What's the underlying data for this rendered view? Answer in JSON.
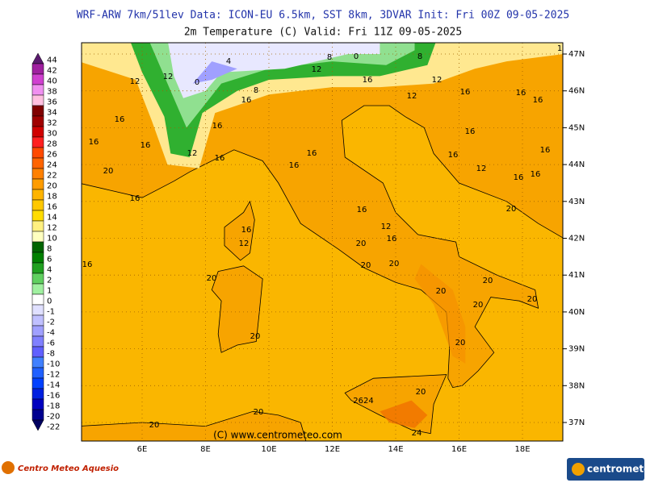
{
  "header": {
    "line1": "WRF-ARW 7km/51lev   Data: ICON-EU 6.5km, SST 8km, 3DVAR   Init: Fri 00Z 09-05-2025",
    "line2": "2m Temperature (C)  Valid: Fri 11Z 09-05-2025"
  },
  "legend": {
    "labels": [
      "44",
      "42",
      "40",
      "38",
      "36",
      "34",
      "32",
      "30",
      "28",
      "26",
      "24",
      "22",
      "20",
      "18",
      "16",
      "14",
      "12",
      "10",
      "8",
      "6",
      "4",
      "2",
      "1",
      "0",
      "-1",
      "-2",
      "-4",
      "-6",
      "-8",
      "-10",
      "-12",
      "-14",
      "-16",
      "-18",
      "-20",
      "-22"
    ],
    "colors": [
      "#5a1a6e",
      "#a020a0",
      "#d040d0",
      "#f090f0",
      "#ffc0e0",
      "#800000",
      "#a00000",
      "#d00000",
      "#ff2020",
      "#ff4a00",
      "#ff6400",
      "#ff8000",
      "#ff9c00",
      "#ffb400",
      "#ffc800",
      "#ffdc00",
      "#fff080",
      "#ffffc0",
      "#006400",
      "#008000",
      "#20a020",
      "#60d060",
      "#a0f0a0",
      "#ffffff",
      "#e0e0ff",
      "#c0c0ff",
      "#a0a0ff",
      "#8080ff",
      "#6060ff",
      "#4080ff",
      "#2060ff",
      "#0040ff",
      "#0020e0",
      "#0000c0",
      "#000090",
      "#000060"
    ]
  },
  "map": {
    "lat_labels": [
      "47N",
      "46N",
      "45N",
      "44N",
      "43N",
      "42N",
      "41N",
      "40N",
      "39N",
      "38N",
      "37N"
    ],
    "lon_labels": [
      "6E",
      "8E",
      "10E",
      "12E",
      "14E",
      "16E",
      "18E"
    ],
    "contour_labels": [
      "12",
      "12",
      "0",
      "4",
      "8",
      "0",
      "8",
      "12",
      "16",
      "12",
      "12",
      "16",
      "16",
      "16",
      "16",
      "16",
      "16",
      "12",
      "16",
      "16",
      "16",
      "16",
      "20",
      "16",
      "16",
      "12",
      "16",
      "16",
      "16",
      "16",
      "20",
      "16",
      "12",
      "16",
      "20",
      "20",
      "20",
      "16",
      "12",
      "16",
      "20",
      "20",
      "20",
      "20",
      "20",
      "20",
      "20",
      "20",
      "2624",
      "24",
      "20",
      "20",
      "16",
      "8",
      "1"
    ],
    "credit": "(C) www.centrometeo.com"
  },
  "footer": {
    "left": "Centro Meteo Aquesio",
    "right": "centrometeo"
  }
}
